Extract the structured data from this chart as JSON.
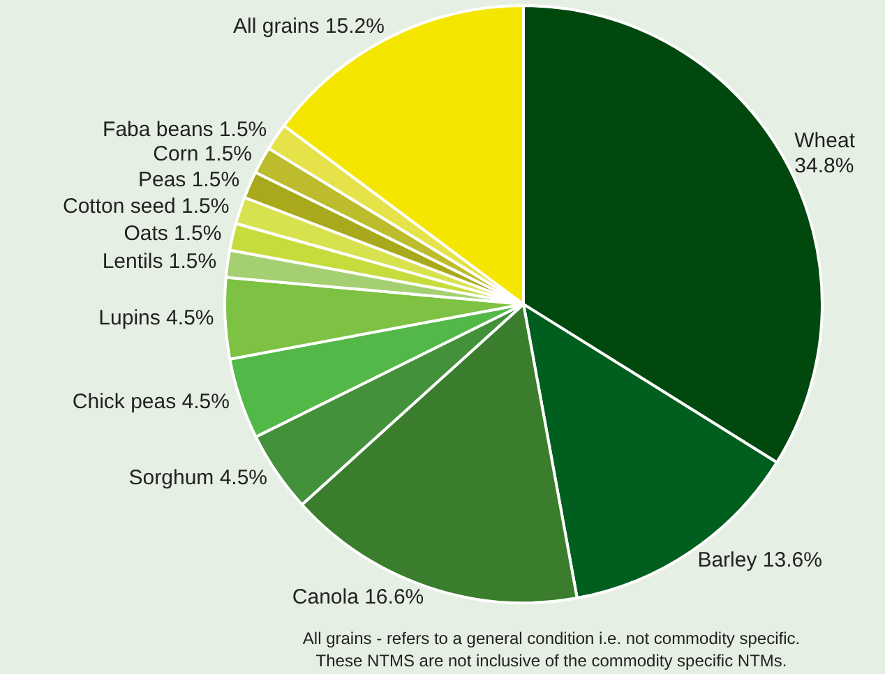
{
  "chart_data": {
    "type": "pie",
    "categories": [
      "Wheat",
      "Barley",
      "Canola",
      "Sorghum",
      "Chick peas",
      "Lupins",
      "Lentils",
      "Oats",
      "Cotton seed",
      "Peas",
      "Corn",
      "Faba beans",
      "All grains"
    ],
    "values": [
      34.8,
      13.6,
      16.6,
      4.5,
      4.5,
      4.5,
      1.5,
      1.5,
      1.5,
      1.5,
      1.5,
      1.5,
      15.2
    ],
    "value_labels": [
      "34.8%",
      "13.6%",
      "16.6%",
      "4.5%",
      "4.5%",
      "4.5%",
      "1.5%",
      "1.5%",
      "1.5%",
      "1.5%",
      "1.5%",
      "1.5%",
      "15.2%"
    ],
    "colors": [
      "#00480e",
      "#005f1e",
      "#3a7d2c",
      "#43913b",
      "#52b848",
      "#7dc242",
      "#a5d071",
      "#c5dc3c",
      "#d8e24e",
      "#a9a91c",
      "#bcbc2c",
      "#e6e24a",
      "#f5e600"
    ],
    "annotations": [
      "All grains - refers to a general condition i.e. not commodity specific.",
      "These NTMS are not inclusive of the commodity specific NTMs."
    ]
  }
}
